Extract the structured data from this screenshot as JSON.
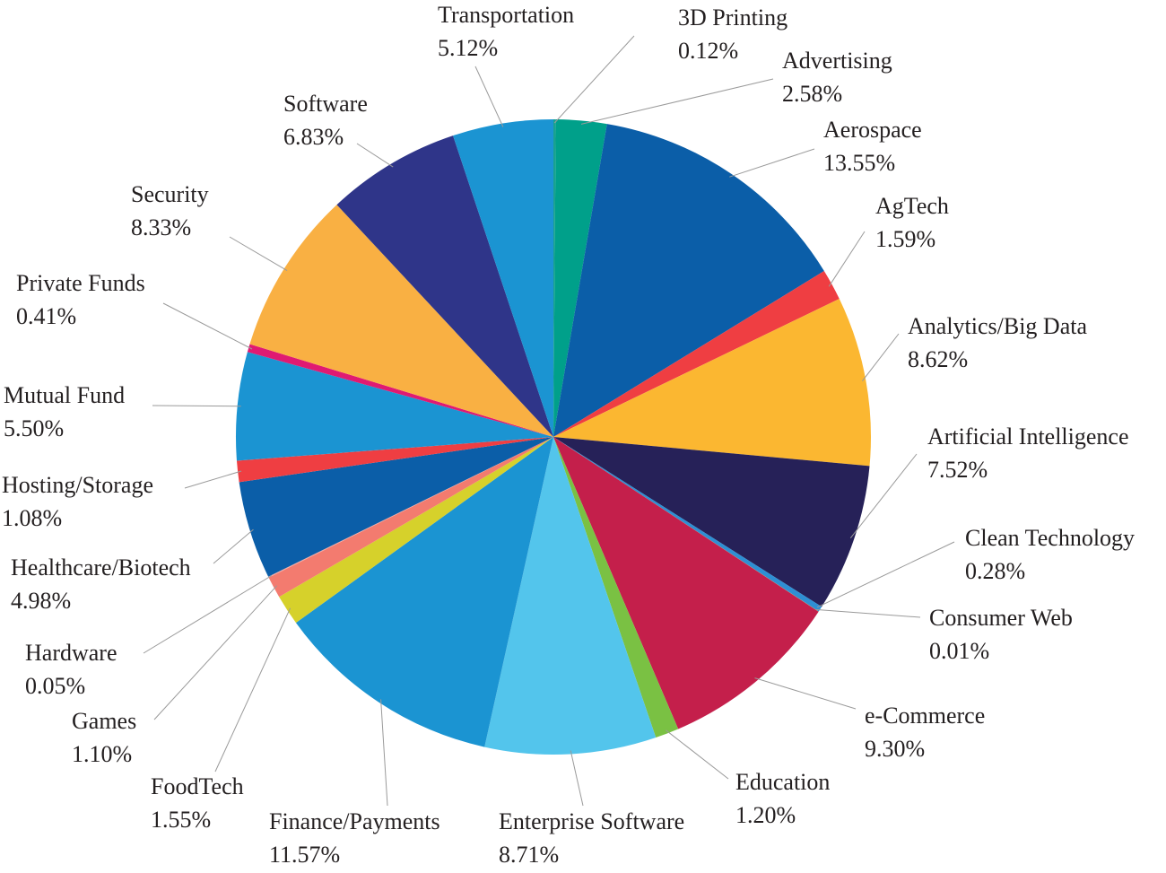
{
  "chart_data": {
    "type": "pie",
    "title": "",
    "start_angle_deg": 0,
    "direction": "clockwise",
    "slices": [
      {
        "name": "3D Printing",
        "value": 0.12,
        "label": "0.12%",
        "color": "#1aa18f"
      },
      {
        "name": "Advertising",
        "value": 2.58,
        "label": "2.58%",
        "color": "#00a08a"
      },
      {
        "name": "Aerospace",
        "value": 13.55,
        "label": "13.55%",
        "color": "#0b5ea8"
      },
      {
        "name": "AgTech",
        "value": 1.59,
        "label": "1.59%",
        "color": "#ef3e42"
      },
      {
        "name": "Analytics/Big Data",
        "value": 8.62,
        "label": "8.62%",
        "color": "#fbb731"
      },
      {
        "name": "Artificial Intelligence",
        "value": 7.52,
        "label": "7.52%",
        "color": "#262158"
      },
      {
        "name": "Clean Technology",
        "value": 0.28,
        "label": "0.28%",
        "color": "#2e8fd3"
      },
      {
        "name": "Consumer Web",
        "value": 0.01,
        "label": "0.01%",
        "color": "#8bc53f"
      },
      {
        "name": "e-Commerce",
        "value": 9.3,
        "label": "9.30%",
        "color": "#c41f4b"
      },
      {
        "name": "Education",
        "value": 1.2,
        "label": "1.20%",
        "color": "#7ac143"
      },
      {
        "name": "Enterprise Software",
        "value": 8.71,
        "label": "8.71%",
        "color": "#53c5ec"
      },
      {
        "name": "Finance/Payments",
        "value": 11.57,
        "label": "11.57%",
        "color": "#1b94d2"
      },
      {
        "name": "FoodTech",
        "value": 1.55,
        "label": "1.55%",
        "color": "#d6d12b"
      },
      {
        "name": "Games",
        "value": 1.1,
        "label": "1.10%",
        "color": "#f37b6f"
      },
      {
        "name": "Hardware",
        "value": 0.05,
        "label": "0.05%",
        "color": "#f7a8a0"
      },
      {
        "name": "Healthcare/Biotech",
        "value": 4.98,
        "label": "4.98%",
        "color": "#0b5ea8"
      },
      {
        "name": "Hosting/Storage",
        "value": 1.08,
        "label": "1.08%",
        "color": "#ef3e42"
      },
      {
        "name": "Mutual Fund",
        "value": 5.5,
        "label": "5.50%",
        "color": "#1b94d2"
      },
      {
        "name": "Private Funds",
        "value": 0.41,
        "label": "0.41%",
        "color": "#e01a72"
      },
      {
        "name": "Security",
        "value": 8.33,
        "label": "8.33%",
        "color": "#f9b043"
      },
      {
        "name": "Software",
        "value": 6.83,
        "label": "6.83%",
        "color": "#2f3589"
      },
      {
        "name": "Transportation",
        "value": 5.12,
        "label": "5.12%",
        "color": "#1b94d2"
      }
    ]
  }
}
